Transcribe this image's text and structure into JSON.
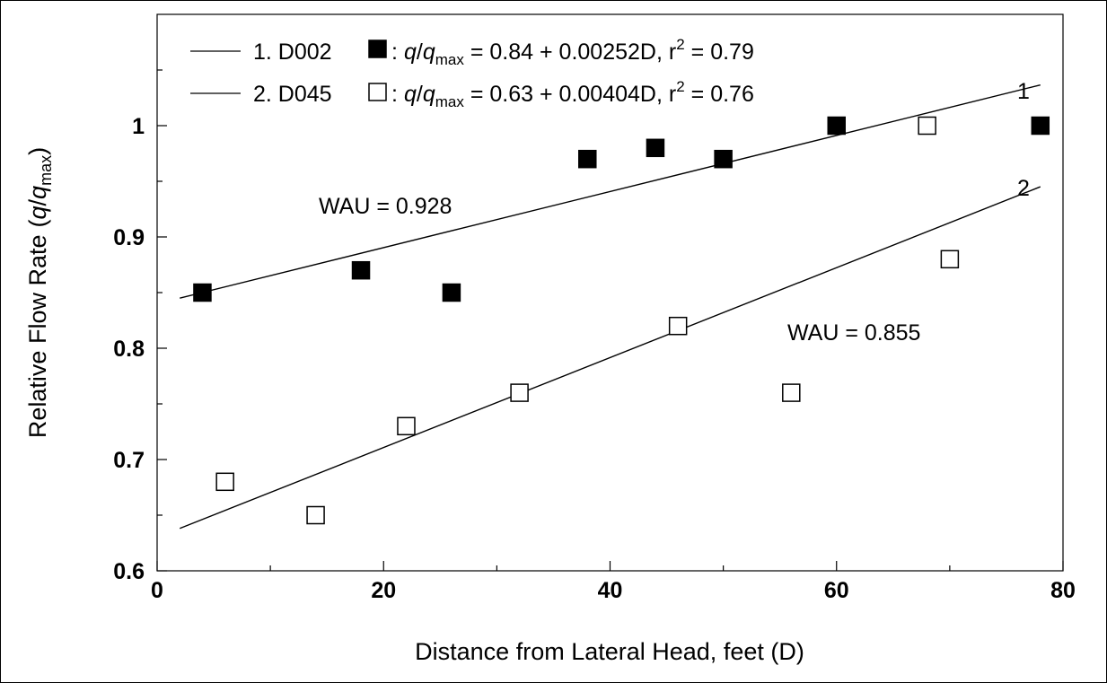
{
  "chart_data": {
    "type": "scatter",
    "xlabel": "Distance from Lateral Head, feet (D)",
    "ylabel": "Relative Flow Rate",
    "ylabel_math": {
      "open": "(",
      "q": "q",
      "slash": "/",
      "qmax_q": "q",
      "qmax_sub": "max",
      "close": ")"
    },
    "xlim": [
      0,
      80
    ],
    "ylim": [
      0.6,
      1.1
    ],
    "xticks": [
      "0",
      "20",
      "40",
      "60",
      "80"
    ],
    "yticks": [
      "0.6",
      "0.7",
      "0.8",
      "0.9",
      "1"
    ],
    "grid": false,
    "legend_position": "top-left",
    "series": [
      {
        "legend_prefix": "1. D002",
        "marker": "filled-square",
        "color": "#000000",
        "eq": {
          "colon": ":",
          "q": "q",
          "slash": "/",
          "qmax_q": "q",
          "qmax_sub": "max",
          "rhs": "= 0.84 + 0.00252D, r",
          "r_exp": "2",
          "tail": "= 0.79"
        },
        "fit": {
          "intercept": 0.84,
          "slope": 0.00252,
          "x_range": [
            2,
            78
          ]
        },
        "line_label": "1",
        "wau_label": "WAU = 0.928",
        "points": [
          {
            "x": 4,
            "y": 0.85
          },
          {
            "x": 18,
            "y": 0.87
          },
          {
            "x": 26,
            "y": 0.85
          },
          {
            "x": 38,
            "y": 0.97
          },
          {
            "x": 44,
            "y": 0.98
          },
          {
            "x": 50,
            "y": 0.97
          },
          {
            "x": 60,
            "y": 1.0
          },
          {
            "x": 78,
            "y": 1.0
          }
        ]
      },
      {
        "legend_prefix": "2. D045",
        "marker": "open-square",
        "color": "#000000",
        "eq": {
          "colon": ":",
          "q": "q",
          "slash": "/",
          "qmax_q": "q",
          "qmax_sub": "max",
          "rhs": "= 0.63 + 0.00404D, r",
          "r_exp": "2",
          "tail": "= 0.76"
        },
        "fit": {
          "intercept": 0.63,
          "slope": 0.00404,
          "x_range": [
            2,
            78
          ]
        },
        "line_label": "2",
        "wau_label": "WAU = 0.855",
        "points": [
          {
            "x": 6,
            "y": 0.68
          },
          {
            "x": 14,
            "y": 0.65
          },
          {
            "x": 22,
            "y": 0.73
          },
          {
            "x": 32,
            "y": 0.76
          },
          {
            "x": 46,
            "y": 0.82
          },
          {
            "x": 56,
            "y": 0.76
          },
          {
            "x": 68,
            "y": 1.0
          },
          {
            "x": 70,
            "y": 0.88
          }
        ]
      }
    ]
  }
}
